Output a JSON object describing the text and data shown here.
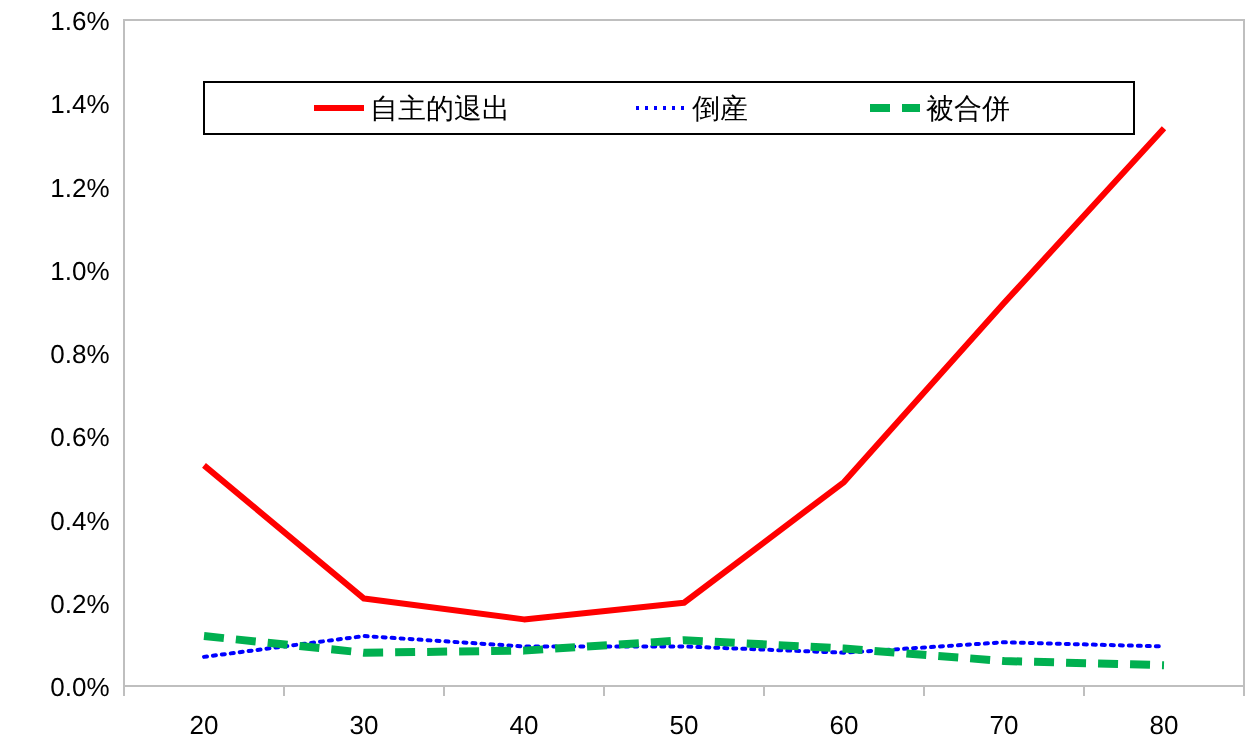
{
  "chart_data": {
    "type": "line",
    "categories": [
      "20",
      "30",
      "40",
      "50",
      "60",
      "70",
      "80"
    ],
    "series": [
      {
        "name": "自主的退出",
        "color": "#ff0000",
        "line_style": "solid",
        "values": [
          0.53,
          0.21,
          0.16,
          0.2,
          0.49,
          0.92,
          1.34
        ]
      },
      {
        "name": "倒産",
        "color": "#0000ff",
        "line_style": "dotted",
        "values": [
          0.07,
          0.12,
          0.095,
          0.095,
          0.08,
          0.105,
          0.095
        ]
      },
      {
        "name": "被合併",
        "color": "#00b050",
        "line_style": "dashed",
        "values": [
          0.12,
          0.08,
          0.085,
          0.11,
          0.09,
          0.06,
          0.05
        ]
      }
    ],
    "ylim": [
      0,
      1.6
    ],
    "yticks": [
      {
        "value": 0,
        "label": "0.0%"
      },
      {
        "value": 0.2,
        "label": "0.2%"
      },
      {
        "value": 0.4,
        "label": "0.4%"
      },
      {
        "value": 0.6,
        "label": "0.6%"
      },
      {
        "value": 0.8,
        "label": "0.8%"
      },
      {
        "value": 1.0,
        "label": "1.0%"
      },
      {
        "value": 1.2,
        "label": "1.2%"
      },
      {
        "value": 1.4,
        "label": "1.4%"
      },
      {
        "value": 1.6,
        "label": "1.6%"
      }
    ],
    "legend": "top",
    "marker": "none"
  }
}
